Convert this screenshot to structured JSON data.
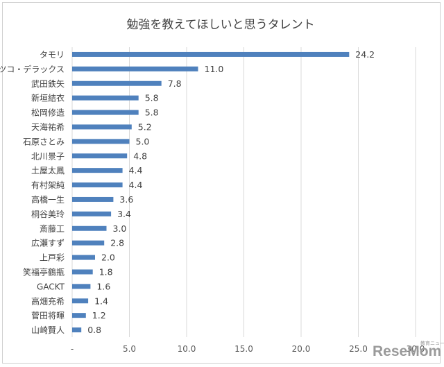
{
  "chart_data": {
    "type": "bar",
    "orientation": "horizontal",
    "title": "勉強を教えてほしいと思うタレント",
    "categories": [
      "タモリ",
      "マツコ・デラックス",
      "武田鉄矢",
      "新垣結衣",
      "松岡修造",
      "天海祐希",
      "石原さとみ",
      "北川景子",
      "土屋太鳳",
      "有村架純",
      "高橋一生",
      "桐谷美玲",
      "斎藤工",
      "広瀬すず",
      "上戸彩",
      "笑福亭鶴瓶",
      "GACKT",
      "高畑充希",
      "菅田将暉",
      "山崎賢人"
    ],
    "values": [
      24.2,
      11.0,
      7.8,
      5.8,
      5.8,
      5.2,
      5.0,
      4.8,
      4.4,
      4.4,
      3.6,
      3.4,
      3.0,
      2.8,
      2.0,
      1.8,
      1.6,
      1.4,
      1.2,
      0.8
    ],
    "value_labels": [
      "24.2",
      "11.0",
      "7.8",
      "5.8",
      "5.8",
      "5.2",
      "5.0",
      "4.8",
      "4.4",
      "4.4",
      "3.6",
      "3.4",
      "3.0",
      "2.8",
      "2.0",
      "1.8",
      "1.6",
      "1.4",
      "1.2",
      "0.8"
    ],
    "xlim": [
      0,
      30
    ],
    "x_ticks": [
      "-",
      "5.0",
      "10.0",
      "15.0",
      "20.0",
      "25.0",
      "30.0"
    ],
    "x_tick_values": [
      0,
      5,
      10,
      15,
      20,
      25,
      30
    ],
    "grid": "vertical",
    "bar_color": "#4f81bd",
    "grid_color": "#d9d9d9"
  },
  "watermark": {
    "text": "ReseMom",
    "small": "教育ニュース"
  }
}
